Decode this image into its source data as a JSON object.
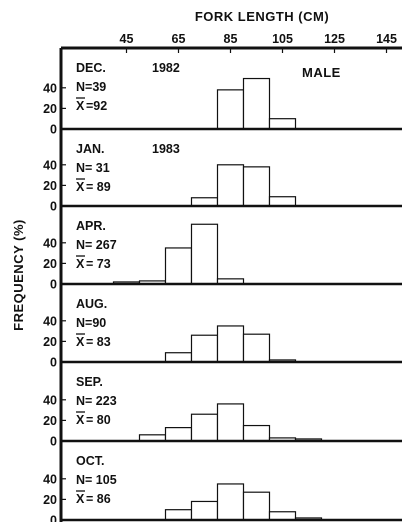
{
  "chart_data": {
    "type": "bar",
    "title": "FORK LENGTH (CM)",
    "ylabel": "FREQUENCY (%)",
    "sex_label": "MALE",
    "x_ticks": [
      "45",
      "65",
      "85",
      "105",
      "125",
      "145"
    ],
    "y_ticks": [
      "0",
      "20",
      "40"
    ],
    "bin_width_cm": 10,
    "xlim": [
      35,
      150
    ],
    "ylim": [
      0,
      52
    ],
    "panels": [
      {
        "month": "DEC.",
        "year": "1982",
        "n": "N=39",
        "mean_symbol": "X",
        "mean": "=92",
        "bins": [
          80,
          90,
          100
        ],
        "values": [
          38,
          49,
          10
        ]
      },
      {
        "month": "JAN.",
        "year": "1983",
        "n": "N= 31",
        "mean_symbol": "X",
        "mean": "= 89",
        "bins": [
          70,
          80,
          90,
          100
        ],
        "values": [
          8,
          40,
          38,
          9
        ]
      },
      {
        "month": "APR.",
        "year": "",
        "n": "N= 267",
        "mean_symbol": "X",
        "mean": "= 73",
        "bins": [
          40,
          50,
          60,
          70,
          80
        ],
        "values": [
          2,
          3,
          35,
          58,
          5
        ]
      },
      {
        "month": "AUG.",
        "year": "",
        "n": "N=90",
        "mean_symbol": "X",
        "mean": "= 83",
        "bins": [
          60,
          70,
          80,
          90,
          100
        ],
        "values": [
          9,
          26,
          35,
          27,
          2
        ]
      },
      {
        "month": "SEP.",
        "year": "",
        "n": "N= 223",
        "mean_symbol": "X",
        "mean": "= 80",
        "bins": [
          50,
          60,
          70,
          80,
          90,
          100,
          110
        ],
        "values": [
          6,
          13,
          26,
          36,
          15,
          3,
          2
        ]
      },
      {
        "month": "OCT.",
        "year": "",
        "n": "N= 105",
        "mean_symbol": "X",
        "mean": "= 86",
        "bins": [
          60,
          70,
          80,
          90,
          100,
          110
        ],
        "values": [
          10,
          18,
          35,
          27,
          8,
          2
        ]
      }
    ]
  }
}
